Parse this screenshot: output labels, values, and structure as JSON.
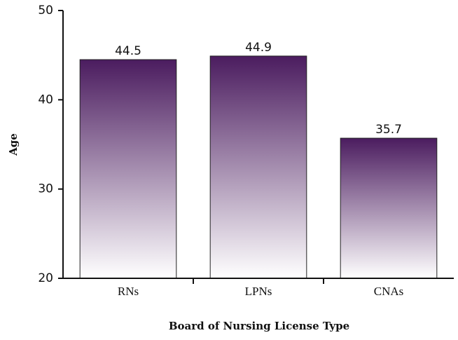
{
  "chart_data": {
    "type": "bar",
    "categories": [
      "RNs",
      "LPNs",
      "CNAs"
    ],
    "values": [
      44.5,
      44.9,
      35.7
    ],
    "color": "#4b1c5f",
    "ylim": [
      20,
      50
    ],
    "yticks": [
      20,
      30,
      40,
      50
    ],
    "x_label": "Board of Nursing License Type",
    "y_label": "Age"
  }
}
